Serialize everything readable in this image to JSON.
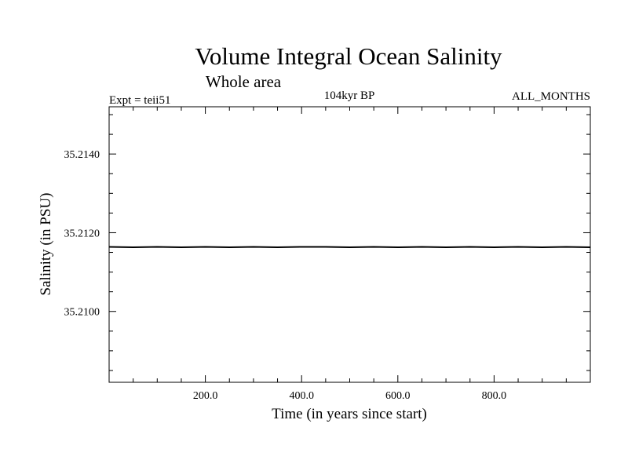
{
  "chart_data": {
    "type": "line",
    "title": "Volume Integral Ocean Salinity",
    "subtitle": "Whole area",
    "annotations": {
      "left": "Expt = teii51",
      "center": "104kyr BP",
      "right": "ALL_MONTHS"
    },
    "xlabel": "Time (in years since start)",
    "ylabel": "Salinity (in PSU)",
    "xlim": [
      0,
      1000
    ],
    "ylim": [
      35.2082,
      35.2152
    ],
    "x_ticks": [
      {
        "value": 200,
        "label": "200.0"
      },
      {
        "value": 400,
        "label": "400.0"
      },
      {
        "value": 600,
        "label": "600.0"
      },
      {
        "value": 800,
        "label": "800.0"
      }
    ],
    "x_minor_step": 50,
    "y_ticks": [
      {
        "value": 35.214,
        "label": "35.2140"
      },
      {
        "value": 35.212,
        "label": "35.2120"
      },
      {
        "value": 35.21,
        "label": "35.2100"
      }
    ],
    "y_minor_step": 0.0005,
    "grid": false,
    "line_color": "#000000",
    "series": [
      {
        "x": [
          0,
          50,
          100,
          150,
          200,
          250,
          300,
          350,
          400,
          450,
          500,
          550,
          600,
          650,
          700,
          750,
          800,
          850,
          900,
          950,
          1000
        ],
        "values": [
          35.21164,
          35.21163,
          35.21164,
          35.21163,
          35.21164,
          35.21163,
          35.21164,
          35.21163,
          35.21164,
          35.21164,
          35.21163,
          35.21164,
          35.21163,
          35.21164,
          35.21163,
          35.21164,
          35.21163,
          35.21164,
          35.21163,
          35.21164,
          35.21163
        ]
      }
    ]
  }
}
